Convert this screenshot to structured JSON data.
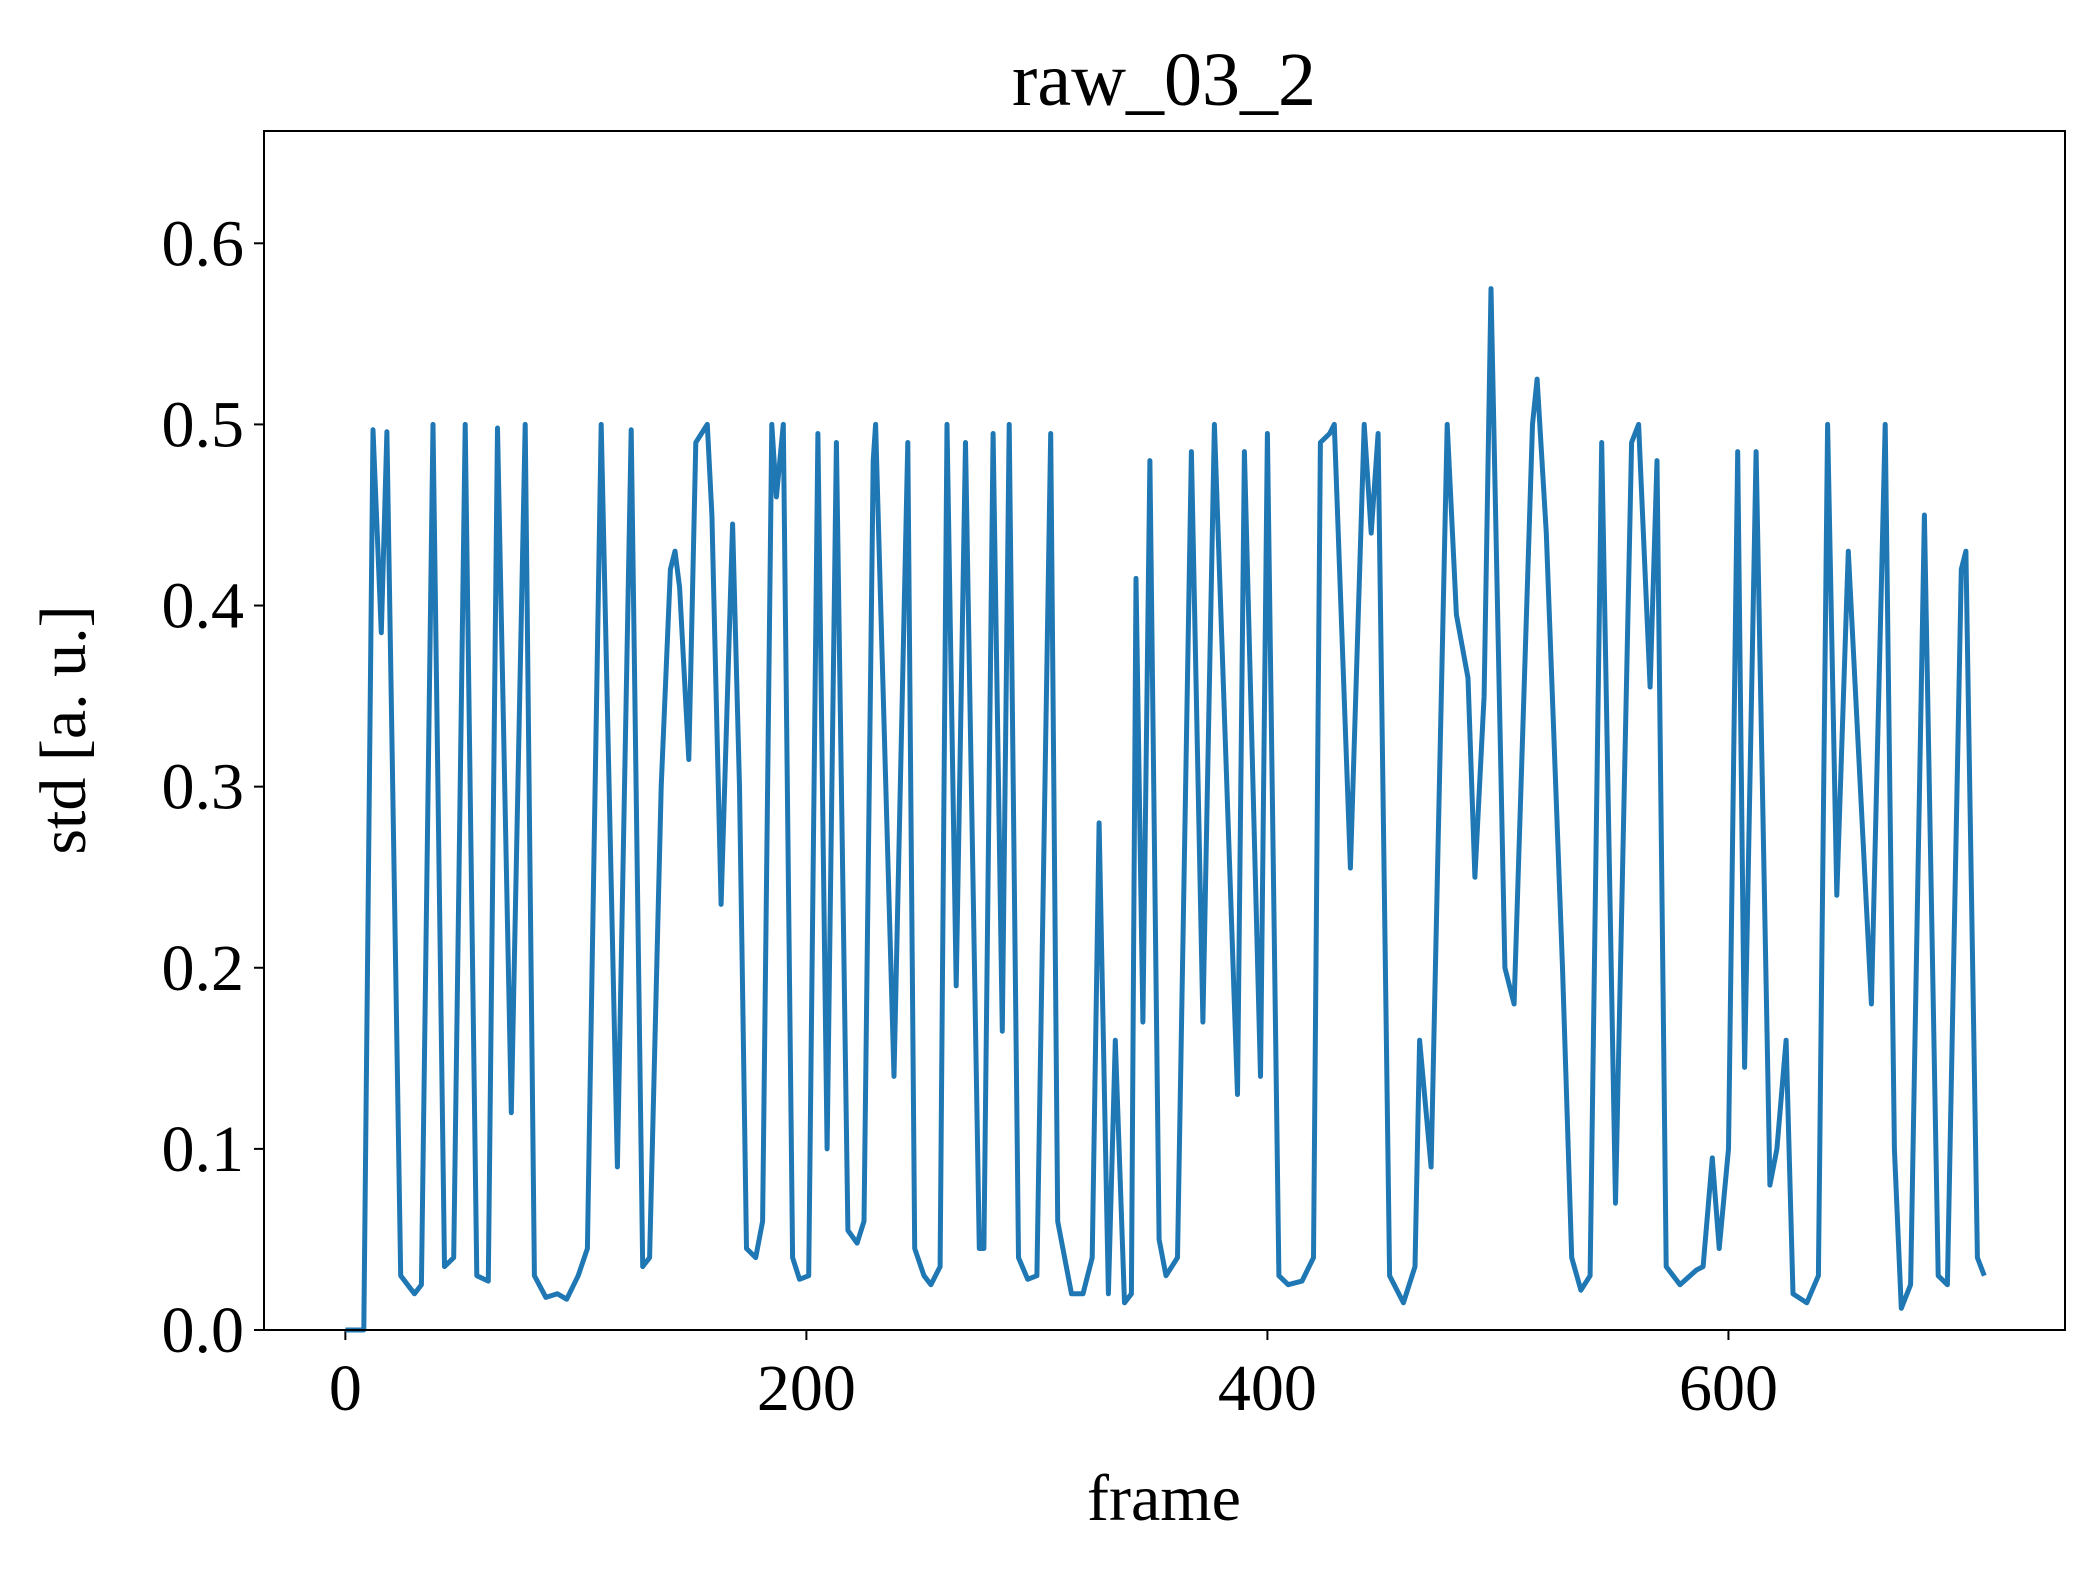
{
  "chart_data": {
    "type": "line",
    "title": "raw_03_2",
    "xlabel": "frame",
    "ylabel": "std [a. u.]",
    "color": "#1f77b4",
    "x": [
      0,
      8,
      12,
      15.6,
      18,
      24,
      30,
      33,
      38,
      43,
      47,
      52,
      57,
      62,
      66,
      72,
      78,
      82,
      87,
      92,
      96,
      101,
      105,
      111,
      118,
      124,
      129,
      132,
      137,
      141,
      143,
      145,
      149,
      152,
      157,
      159,
      163,
      168,
      171,
      174,
      178,
      181,
      185,
      187,
      190,
      194,
      197,
      201,
      205,
      209,
      213,
      218,
      222,
      225,
      229,
      230,
      238,
      244,
      247,
      251,
      254,
      258,
      261,
      265,
      269,
      275,
      277,
      281,
      285,
      288,
      292,
      296,
      300,
      306,
      309,
      315,
      320,
      324,
      327,
      331,
      334,
      338,
      341,
      343,
      346,
      349,
      353,
      356,
      361,
      367,
      372,
      377,
      387,
      390,
      397,
      400,
      405,
      409,
      415,
      420,
      423,
      427,
      429,
      436,
      442,
      445,
      448,
      453,
      459,
      464,
      466,
      471,
      478,
      482,
      487,
      490,
      494,
      497,
      503,
      507,
      515,
      517,
      521,
      528,
      532,
      536,
      540,
      545,
      551,
      558,
      561,
      566,
      569,
      573,
      579,
      586,
      589,
      593,
      596,
      600,
      604,
      607,
      612,
      618,
      621,
      625,
      628,
      634,
      639,
      643,
      647,
      652,
      662,
      668,
      672,
      675,
      679,
      685,
      691,
      695,
      701,
      703,
      708,
      711
    ],
    "values": [
      0,
      0,
      0.497,
      0.385,
      0.496,
      0.03,
      0.02,
      0.025,
      0.5,
      0.035,
      0.04,
      0.5,
      0.03,
      0.027,
      0.498,
      0.12,
      0.5,
      0.03,
      0.018,
      0.02,
      0.017,
      0.03,
      0.045,
      0.5,
      0.09,
      0.497,
      0.035,
      0.04,
      0.3,
      0.42,
      0.43,
      0.41,
      0.315,
      0.49,
      0.5,
      0.45,
      0.235,
      0.445,
      0.3,
      0.045,
      0.04,
      0.06,
      0.5,
      0.46,
      0.5,
      0.04,
      0.028,
      0.03,
      0.495,
      0.1,
      0.49,
      0.055,
      0.048,
      0.06,
      0.48,
      0.5,
      0.14,
      0.49,
      0.045,
      0.03,
      0.025,
      0.035,
      0.5,
      0.19,
      0.49,
      0.045,
      0.045,
      0.495,
      0.165,
      0.5,
      0.04,
      0.028,
      0.03,
      0.495,
      0.06,
      0.02,
      0.02,
      0.04,
      0.28,
      0.02,
      0.16,
      0.015,
      0.02,
      0.415,
      0.17,
      0.48,
      0.05,
      0.03,
      0.04,
      0.485,
      0.17,
      0.5,
      0.13,
      0.485,
      0.14,
      0.495,
      0.03,
      0.025,
      0.027,
      0.04,
      0.49,
      0.495,
      0.5,
      0.255,
      0.5,
      0.44,
      0.495,
      0.03,
      0.015,
      0.035,
      0.16,
      0.09,
      0.5,
      0.395,
      0.36,
      0.25,
      0.35,
      0.575,
      0.2,
      0.18,
      0.5,
      0.525,
      0.44,
      0.2,
      0.04,
      0.022,
      0.03,
      0.49,
      0.07,
      0.49,
      0.5,
      0.355,
      0.48,
      0.035,
      0.025,
      0.033,
      0.035,
      0.095,
      0.045,
      0.1,
      0.485,
      0.145,
      0.485,
      0.08,
      0.1,
      0.16,
      0.02,
      0.015,
      0.03,
      0.5,
      0.24,
      0.43,
      0.18,
      0.5,
      0.1,
      0.012,
      0.025,
      0.45,
      0.03,
      0.025,
      0.42,
      0.43,
      0.04,
      0.03
    ],
    "xlim": [
      -35.3,
      746
    ],
    "ylim": [
      0,
      0.662
    ],
    "xticks": [
      0,
      200,
      400,
      600
    ],
    "yticks": [
      {
        "value": 0,
        "label": "0.0"
      },
      0.1,
      0.2,
      0.3,
      0.4,
      0.5,
      0.6
    ]
  }
}
